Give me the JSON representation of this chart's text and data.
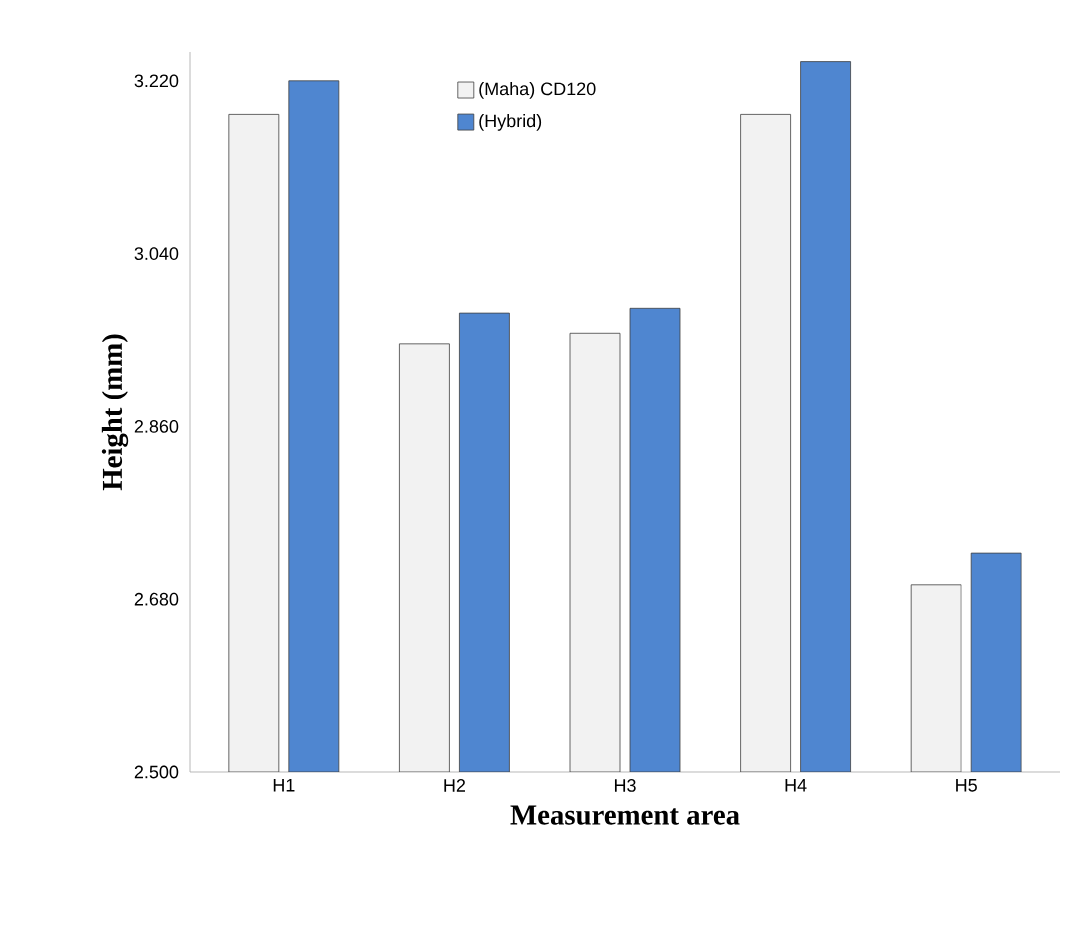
{
  "chart_data": {
    "type": "bar",
    "xlabel": "Measurement area",
    "ylabel": "Height (mm)",
    "categories": [
      "H1",
      "H2",
      "H3",
      "H4",
      "H5"
    ],
    "series": [
      {
        "name": "(Maha) CD120",
        "color": "#f2f2f2",
        "values": [
          3.185,
          2.946,
          2.957,
          3.185,
          2.695
        ]
      },
      {
        "name": "(Hybrid)",
        "color": "#4f86d0",
        "values": [
          3.22,
          2.978,
          2.983,
          3.24,
          2.728
        ]
      }
    ],
    "ylim": [
      2.5,
      3.25
    ],
    "yticks": [
      {
        "value": 2.5,
        "label": "2.500"
      },
      {
        "value": 2.68,
        "label": "2.680"
      },
      {
        "value": 2.86,
        "label": "2.860"
      },
      {
        "value": 3.04,
        "label": "3.040"
      },
      {
        "value": 3.22,
        "label": "3.220"
      }
    ],
    "grid": false,
    "legend": "top"
  }
}
